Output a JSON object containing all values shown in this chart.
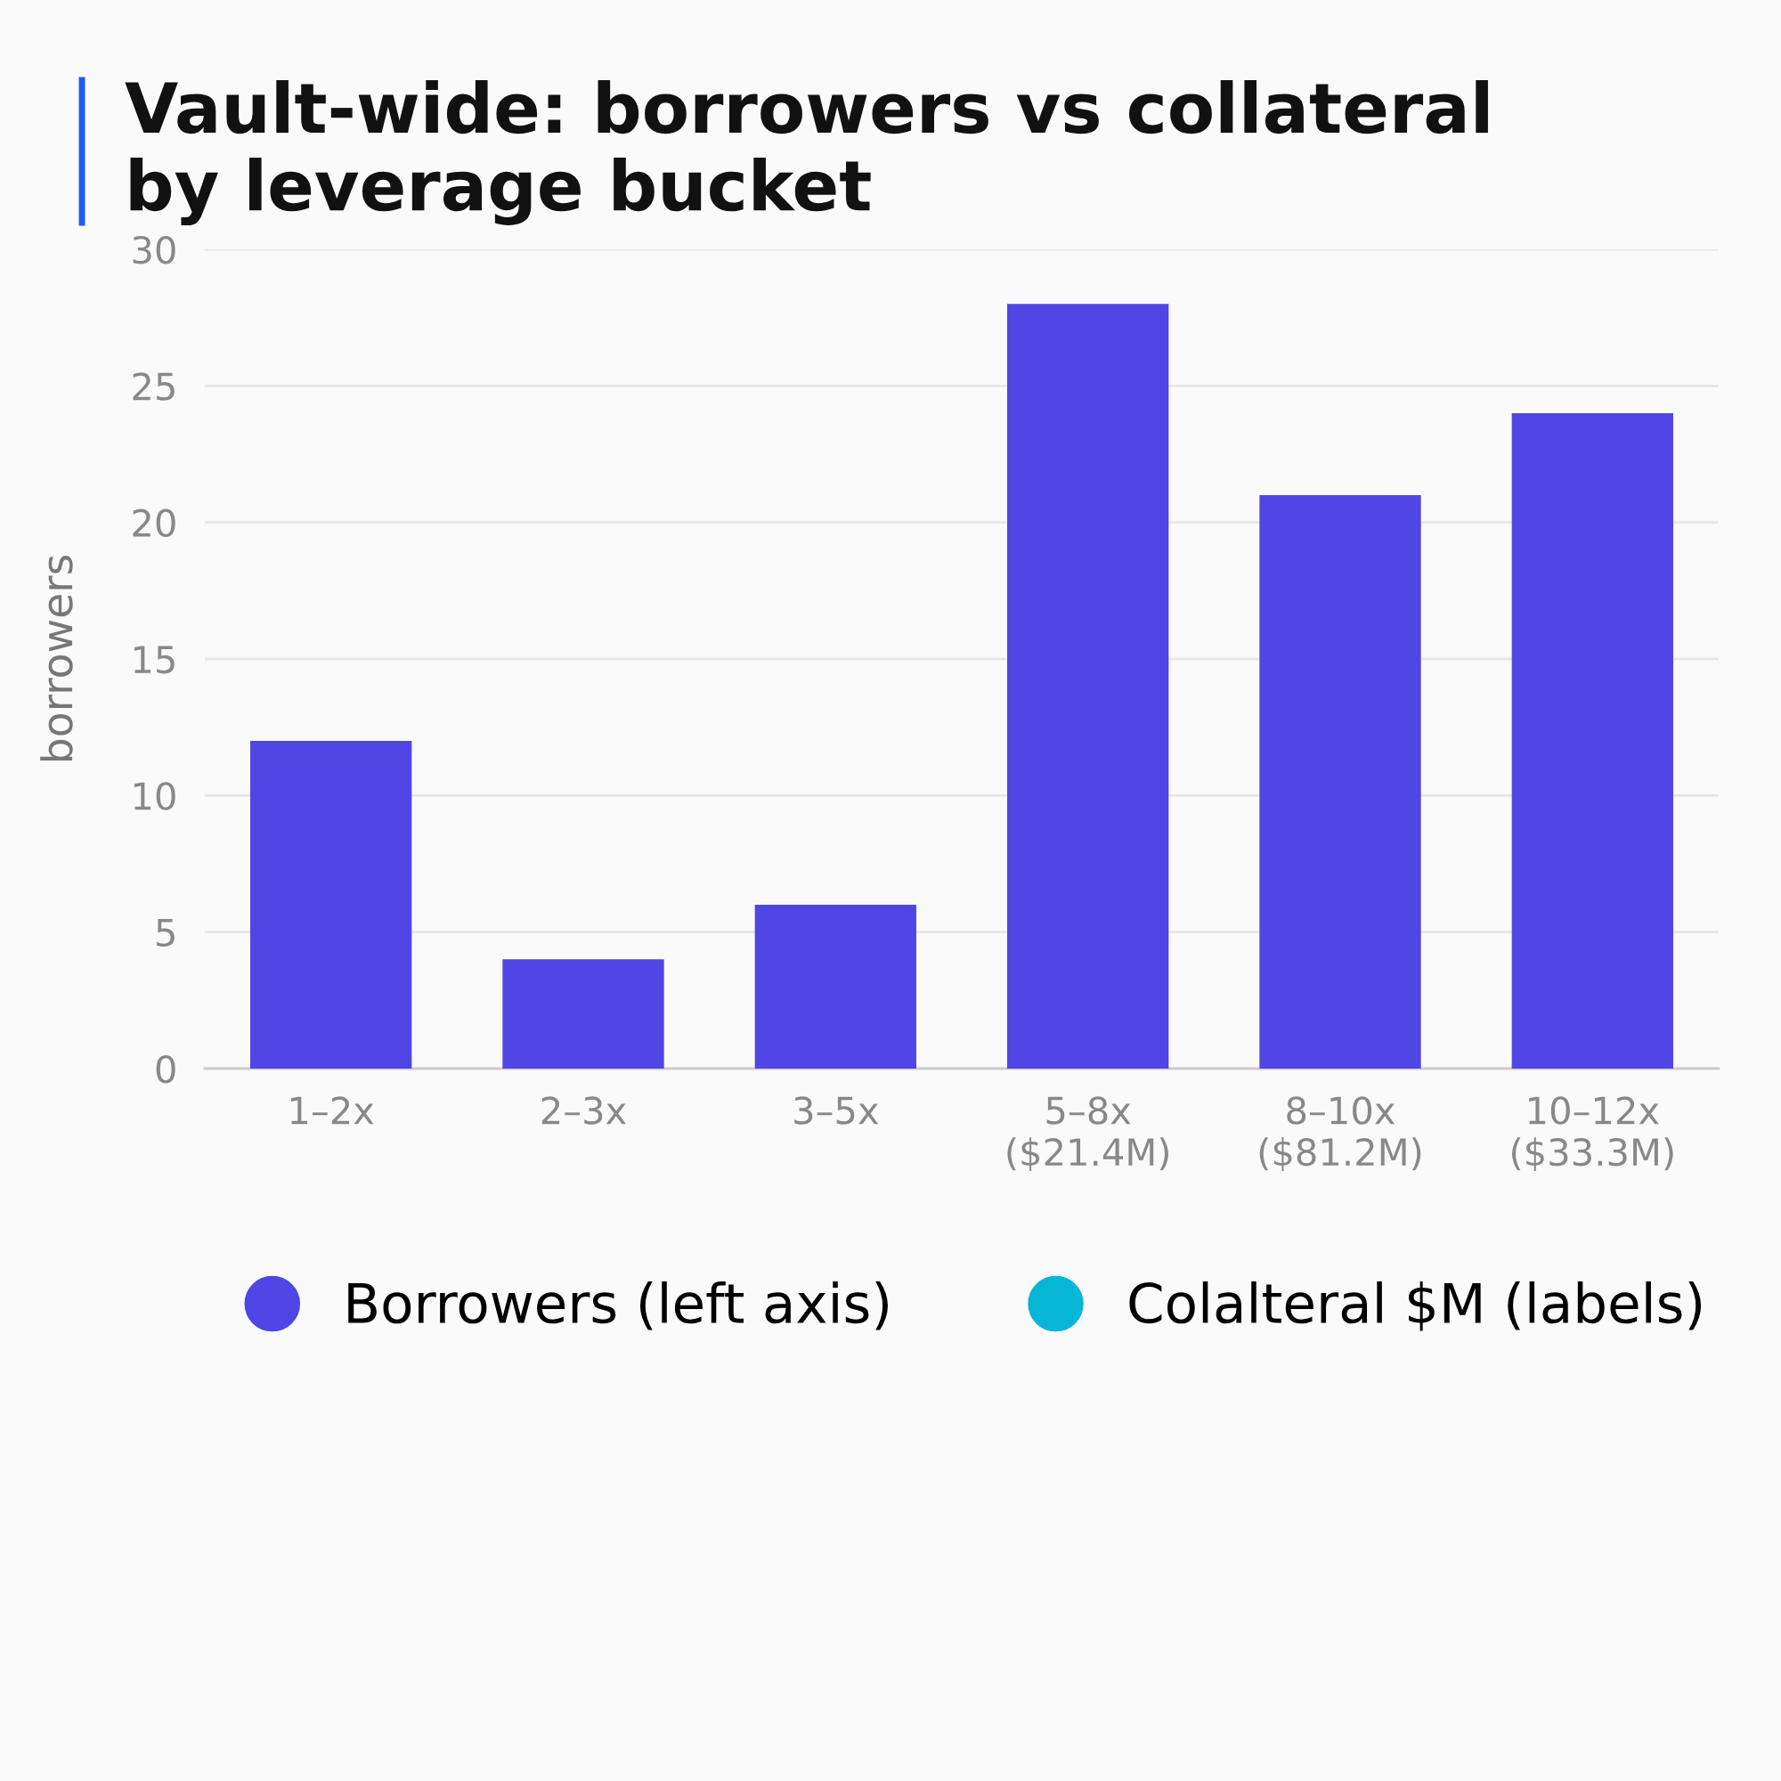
{
  "chart_data": {
    "type": "bar",
    "title": "Vault-wide: borrowers vs collateral\nby leverage bucket",
    "ylabel": "borrowers",
    "categories": [
      "1–2x",
      "2–3x",
      "3–5x",
      "5–8x\n($21.4M)",
      "8–10x\n($81.2M)",
      "10–12x\n($33.3M)"
    ],
    "series": [
      {
        "name": "Borrowers (left axis)",
        "color": "#5046e5",
        "values": [
          12,
          4,
          6,
          28,
          21,
          24
        ]
      },
      {
        "name": "Colalteral $M (labels)",
        "color": "#06b6d4",
        "values": [
          null,
          null,
          null,
          null,
          null,
          null
        ]
      }
    ],
    "ylim": [
      0,
      30
    ],
    "yticks": [
      0,
      5,
      10,
      15,
      20,
      25,
      30
    ],
    "grid": "y",
    "legend": "bottom"
  }
}
